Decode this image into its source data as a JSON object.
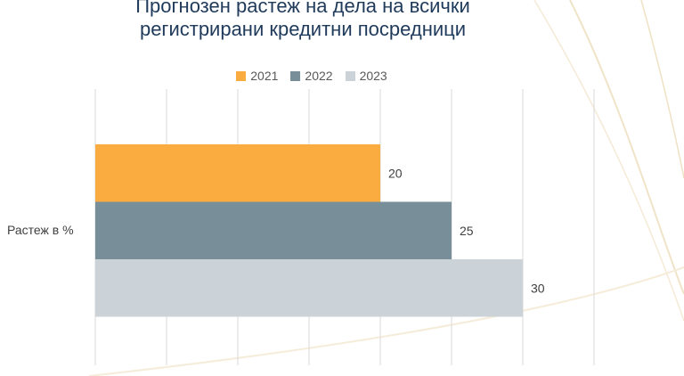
{
  "title_line1": "Прогнозен растеж на дела на всички",
  "title_line2": "регистрирани кредитни посредници",
  "colors": {
    "2021": "#fbac40",
    "2022": "#788f99",
    "2023": "#cbd3d9",
    "grid": "#d9d9d9",
    "label": "#404040"
  },
  "chart_data": {
    "type": "bar",
    "orientation": "horizontal",
    "title": "Прогнозен растеж на дела на всички регистрирани кредитни посредници",
    "categories": [
      "Растеж в %"
    ],
    "series": [
      {
        "name": "2021",
        "values": [
          20
        ]
      },
      {
        "name": "2022",
        "values": [
          25
        ]
      },
      {
        "name": "2023",
        "values": [
          30
        ]
      }
    ],
    "xlim": [
      0,
      35
    ],
    "grid": true,
    "legend": "top",
    "data_labels": true
  }
}
